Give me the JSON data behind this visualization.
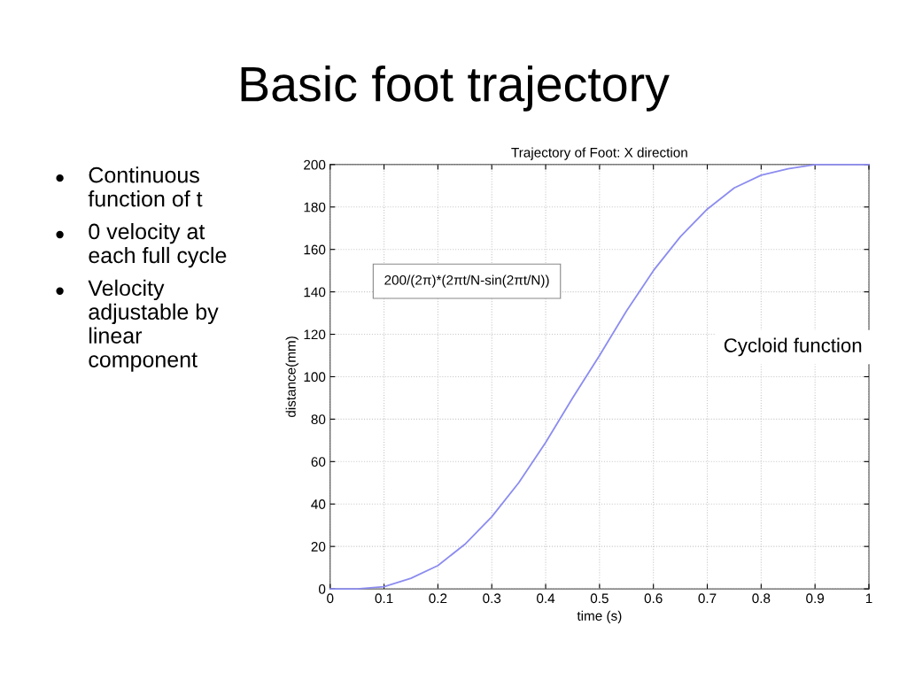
{
  "chart_data": {
    "type": "line",
    "title": "Basic foot trajectory",
    "subtitle": "Trajectory of Foot: X direction",
    "xlabel": "time (s)",
    "ylabel": "distance(mm)",
    "x": [
      0,
      0.05,
      0.1,
      0.15,
      0.2,
      0.25,
      0.3,
      0.35,
      0.4,
      0.45,
      0.5,
      0.55,
      0.6,
      0.65,
      0.7,
      0.75,
      0.8,
      0.85,
      0.9,
      0.95,
      1.0
    ],
    "series": [
      {
        "color": "#8c8cf0",
        "values": [
          0,
          0,
          1,
          5,
          11,
          21,
          34,
          50,
          69,
          90,
          110,
          131,
          150,
          166,
          179,
          189,
          195,
          198,
          200,
          200,
          200
        ]
      }
    ],
    "xlim": [
      0,
      1
    ],
    "ylim": [
      0,
      200
    ],
    "xticks": [
      0,
      0.1,
      0.2,
      0.3,
      0.4,
      0.5,
      0.6,
      0.7,
      0.8,
      0.9,
      1
    ],
    "yticks": [
      0,
      20,
      40,
      60,
      80,
      100,
      120,
      140,
      160,
      180,
      200
    ],
    "grid": true,
    "marker": "none",
    "line_style": "solid",
    "annotations": [
      "Continuous function of t",
      "0 velocity at each full cycle",
      "Velocity adjustable by linear component",
      "200/(2π)*(2πt/N-sin(2πt/N))",
      "Cycloid function"
    ]
  }
}
